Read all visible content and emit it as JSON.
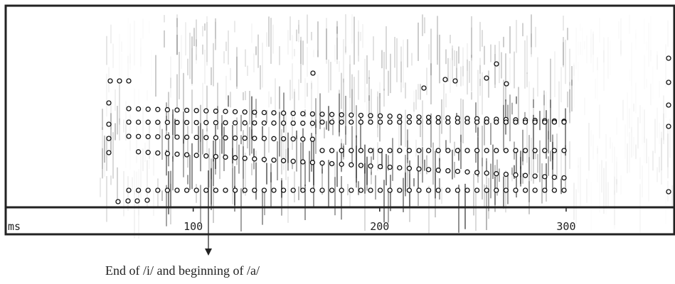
{
  "axis": {
    "unit": "ms",
    "xlim": [
      0,
      358
    ],
    "ticks": [
      100,
      200,
      300
    ]
  },
  "annotation": {
    "text": "End of /i/ and beginning of /a/"
  }
}
